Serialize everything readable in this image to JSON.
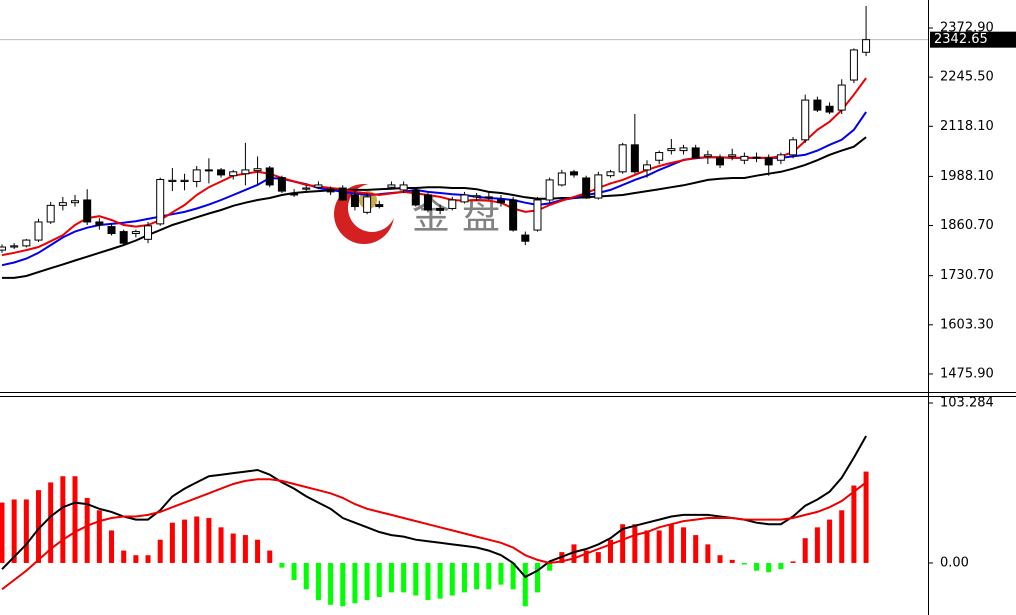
{
  "chart_data": [
    {
      "type": "candlestick",
      "up_color": "#ffffff",
      "down_color": "#000000",
      "open": [
        1797,
        1805,
        1808,
        1823,
        1870,
        1913,
        1920,
        1927,
        1870,
        1858,
        1845,
        1840,
        1825,
        1865,
        1975,
        1975,
        1975,
        2003,
        2005,
        1990,
        1995,
        2003,
        2010,
        1985,
        1945,
        1955,
        1960,
        1955,
        1958,
        1940,
        1895,
        1915,
        1960,
        1953,
        1953,
        1940,
        1905,
        1905,
        1922,
        1935,
        1935,
        1927,
        1927,
        1836,
        1849,
        1927,
        1966,
        2000,
        1984,
        1932,
        1990,
        2000,
        2070,
        2005,
        2030,
        2055,
        2055,
        2062,
        2040,
        2036,
        2040,
        2030,
        2036,
        2036,
        2030,
        2044,
        2083,
        2186,
        2170,
        2160,
        2238,
        2310
      ],
      "high": [
        1812,
        1815,
        1826,
        1878,
        1922,
        1935,
        1940,
        1955,
        1880,
        1866,
        1850,
        1850,
        1870,
        1985,
        2010,
        1995,
        2015,
        2035,
        2010,
        2005,
        2075,
        2040,
        2015,
        1990,
        1955,
        1965,
        1975,
        1962,
        1965,
        1950,
        1945,
        1925,
        1975,
        1975,
        1960,
        1945,
        1915,
        1935,
        1948,
        1945,
        1948,
        1940,
        1935,
        1845,
        1935,
        1985,
        2005,
        2005,
        1990,
        2000,
        2005,
        2075,
        2150,
        2030,
        2055,
        2085,
        2070,
        2070,
        2055,
        2045,
        2060,
        2050,
        2050,
        2045,
        2050,
        2090,
        2200,
        2195,
        2180,
        2240,
        2320,
        2430
      ],
      "low": [
        1790,
        1800,
        1804,
        1818,
        1865,
        1900,
        1910,
        1862,
        1850,
        1835,
        1810,
        1830,
        1815,
        1860,
        1950,
        1952,
        1960,
        1970,
        1985,
        1980,
        1965,
        1965,
        1960,
        1945,
        1935,
        1945,
        1955,
        1940,
        1925,
        1900,
        1890,
        1905,
        1955,
        1945,
        1910,
        1895,
        1890,
        1900,
        1918,
        1925,
        1928,
        1910,
        1845,
        1810,
        1845,
        1920,
        1962,
        1985,
        1930,
        1928,
        1985,
        1995,
        1995,
        1985,
        2020,
        2045,
        2045,
        2035,
        2020,
        2010,
        2030,
        2020,
        2025,
        1990,
        2020,
        2035,
        2075,
        2155,
        2150,
        2150,
        2230,
        2300
      ],
      "close": [
        1805,
        1808,
        1823,
        1870,
        1913,
        1920,
        1925,
        1870,
        1862,
        1840,
        1815,
        1845,
        1860,
        1980,
        1978,
        1978,
        2005,
        2005,
        1992,
        2000,
        2005,
        2008,
        1966,
        1950,
        1940,
        1958,
        1966,
        1948,
        1927,
        1910,
        1935,
        1910,
        1966,
        1966,
        1914,
        1901,
        1900,
        1927,
        1940,
        1938,
        1935,
        1920,
        1849,
        1820,
        1927,
        1979,
        1997,
        1992,
        1932,
        1992,
        2000,
        2070,
        2000,
        2018,
        2050,
        2060,
        2062,
        2036,
        2044,
        2018,
        2044,
        2040,
        2038,
        2018,
        2044,
        2083,
        2186,
        2160,
        2155,
        2225,
        2316,
        2342.65
      ],
      "lines": [
        {
          "color": "#000000",
          "values": [
            1725,
            1725,
            1730,
            1740,
            1750,
            1760,
            1770,
            1780,
            1790,
            1800,
            1810,
            1822,
            1836,
            1849,
            1862,
            1872,
            1882,
            1892,
            1901,
            1912,
            1920,
            1927,
            1932,
            1940,
            1945,
            1948,
            1950,
            1952,
            1953,
            1953,
            1953,
            1955,
            1956,
            1958,
            1958,
            1960,
            1960,
            1958,
            1958,
            1955,
            1948,
            1945,
            1940,
            1934,
            1930,
            1930,
            1932,
            1932,
            1934,
            1936,
            1938,
            1940,
            1945,
            1950,
            1955,
            1960,
            1965,
            1972,
            1979,
            1982,
            1984,
            1984,
            1990,
            1995,
            2000,
            2008,
            2018,
            2030,
            2044,
            2055,
            2065,
            2090
          ]
        },
        {
          "color": "#0000ee",
          "values": [
            1758,
            1765,
            1775,
            1790,
            1810,
            1830,
            1845,
            1855,
            1862,
            1865,
            1868,
            1872,
            1878,
            1884,
            1890,
            1896,
            1905,
            1915,
            1927,
            1940,
            1953,
            1966,
            1984,
            1982,
            1975,
            1968,
            1958,
            1953,
            1948,
            1944,
            1940,
            1942,
            1945,
            1948,
            1953,
            1948,
            1945,
            1942,
            1940,
            1935,
            1932,
            1930,
            1927,
            1920,
            1914,
            1918,
            1927,
            1932,
            1940,
            1945,
            1953,
            1966,
            1979,
            1990,
            2005,
            2018,
            2031,
            2035,
            2038,
            2038,
            2036,
            2036,
            2036,
            2036,
            2036,
            2040,
            2044,
            2055,
            2070,
            2083,
            2109,
            2155
          ]
        },
        {
          "color": "#ee0000",
          "values": [
            1784,
            1790,
            1797,
            1805,
            1820,
            1836,
            1862,
            1880,
            1885,
            1875,
            1862,
            1858,
            1862,
            1875,
            1895,
            1914,
            1940,
            1960,
            1975,
            1990,
            1995,
            2000,
            1995,
            1984,
            1975,
            1966,
            1962,
            1958,
            1955,
            1948,
            1944,
            1940,
            1944,
            1948,
            1944,
            1940,
            1935,
            1927,
            1925,
            1927,
            1925,
            1920,
            1905,
            1896,
            1900,
            1914,
            1925,
            1935,
            1945,
            1958,
            1970,
            1979,
            1992,
            2005,
            2015,
            2023,
            2030,
            2036,
            2038,
            2038,
            2036,
            2036,
            2036,
            2036,
            2040,
            2051,
            2080,
            2109,
            2130,
            2160,
            2200,
            2243
          ]
        }
      ],
      "ylim": [
        1429.1,
        2445.5
      ],
      "yticks": [
        {
          "value": 2372.9,
          "label": "2372.90"
        },
        {
          "value": 2245.5,
          "label": "2245.50"
        },
        {
          "value": 2118.1,
          "label": "2118.10"
        },
        {
          "value": 1988.1,
          "label": "1988.10"
        },
        {
          "value": 1860.7,
          "label": "1860.70"
        },
        {
          "value": 1730.7,
          "label": "1730.70"
        },
        {
          "value": 1603.3,
          "label": "1603.30"
        },
        {
          "value": 1475.9,
          "label": "1475.90"
        }
      ],
      "last_price": {
        "value": 2342.65,
        "label": "2342.65"
      },
      "watermark": "金 盘"
    },
    {
      "type": "macd",
      "up_color": "#ff0000",
      "down_color": "#00ff00",
      "values": [
        39,
        41,
        41,
        47,
        52,
        56,
        56,
        42,
        34,
        21,
        8,
        5,
        5,
        15,
        26,
        28,
        30,
        29,
        23,
        19,
        18,
        15,
        8,
        -3,
        -11,
        -17,
        -24,
        -27,
        -28,
        -26,
        -24,
        -22,
        -19,
        -19,
        -21,
        -24,
        -23,
        -21,
        -19,
        -17,
        -17,
        -14,
        -17,
        -28,
        -19,
        -5,
        7,
        12,
        8,
        7,
        15,
        25,
        25,
        21,
        21,
        25,
        23,
        18,
        12,
        5,
        2,
        -1,
        -5,
        -6,
        -4,
        1,
        16,
        23,
        28,
        34,
        50,
        59
      ],
      "lines": [
        {
          "color": "#000000",
          "values": [
            -4,
            4,
            12,
            22,
            30,
            36,
            39,
            38,
            35,
            33,
            30,
            28,
            28,
            34,
            43,
            48,
            52,
            56,
            57,
            58,
            59,
            60,
            57,
            52,
            48,
            43,
            39,
            35,
            29,
            26,
            23,
            20,
            18,
            17,
            15,
            14,
            13,
            12,
            11,
            10,
            8,
            5,
            0,
            -9,
            -5,
            1,
            4,
            7,
            9,
            12,
            16,
            22,
            24,
            26,
            28,
            30,
            31,
            31,
            31,
            30,
            29,
            28,
            26,
            25,
            25,
            30,
            37,
            41,
            46,
            55,
            68,
            82
          ]
        },
        {
          "color": "#ee0000",
          "values": [
            -17,
            -11,
            -5,
            2,
            9,
            15,
            20,
            24,
            27,
            29,
            30,
            30,
            31,
            33,
            36,
            39,
            42,
            45,
            48,
            51,
            53,
            54,
            54,
            53,
            51,
            49,
            47,
            45,
            42,
            38,
            35,
            33,
            31,
            29,
            27,
            25,
            23,
            21,
            19,
            17,
            15,
            13,
            10,
            5,
            2,
            0,
            1,
            3,
            6,
            9,
            12,
            15,
            18,
            20,
            23,
            25,
            27,
            28,
            29,
            29,
            29,
            28,
            28,
            28,
            28,
            29,
            31,
            33,
            36,
            40,
            46,
            52
          ]
        }
      ],
      "ylim": [
        -33.6,
        107.8
      ],
      "yticks": [
        103.284,
        {
          "value": 0,
          "label": "0.00"
        }
      ]
    }
  ]
}
